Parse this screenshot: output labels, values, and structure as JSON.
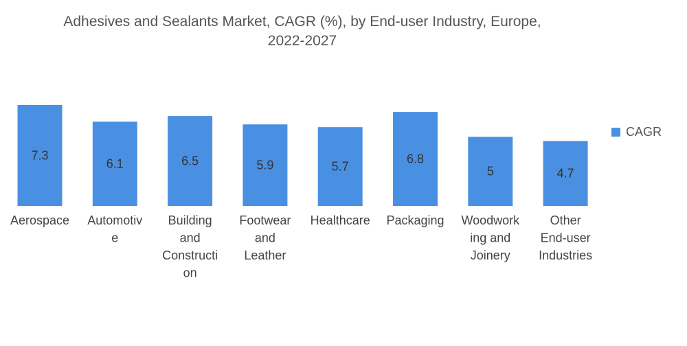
{
  "chart_data": {
    "type": "bar",
    "title": "Adhesives and Sealants Market, CAGR (%), by End-user Industry, Europe, 2022-2027",
    "title_lines": [
      "Adhesives and Sealants Market, CAGR (%), by End-user Industry, Europe,",
      "2022-2027"
    ],
    "categories": [
      "Aerospace",
      "Automotive",
      "Building and Construction",
      "Footwear and Leather",
      "Healthcare",
      "Packaging",
      "Woodworking and Joinery",
      "Other End-user Industries"
    ],
    "category_label_lines": [
      [
        "Aerospace"
      ],
      [
        "Automotiv",
        "e"
      ],
      [
        "Building",
        "and",
        "Constructi",
        "on"
      ],
      [
        "Footwear",
        "and",
        "Leather"
      ],
      [
        "Healthcare"
      ],
      [
        "Packaging"
      ],
      [
        "Woodwork",
        "ing and",
        "Joinery"
      ],
      [
        "Other",
        "End-user",
        "Industries"
      ]
    ],
    "series": [
      {
        "name": "CAGR",
        "values": [
          7.3,
          6.1,
          6.5,
          5.9,
          5.7,
          6.8,
          5,
          4.7
        ],
        "color": "#4a90e2"
      }
    ],
    "xlabel": "",
    "ylabel": "",
    "ylim": [
      0,
      7.3
    ],
    "grid": false,
    "legend_position": "right"
  }
}
